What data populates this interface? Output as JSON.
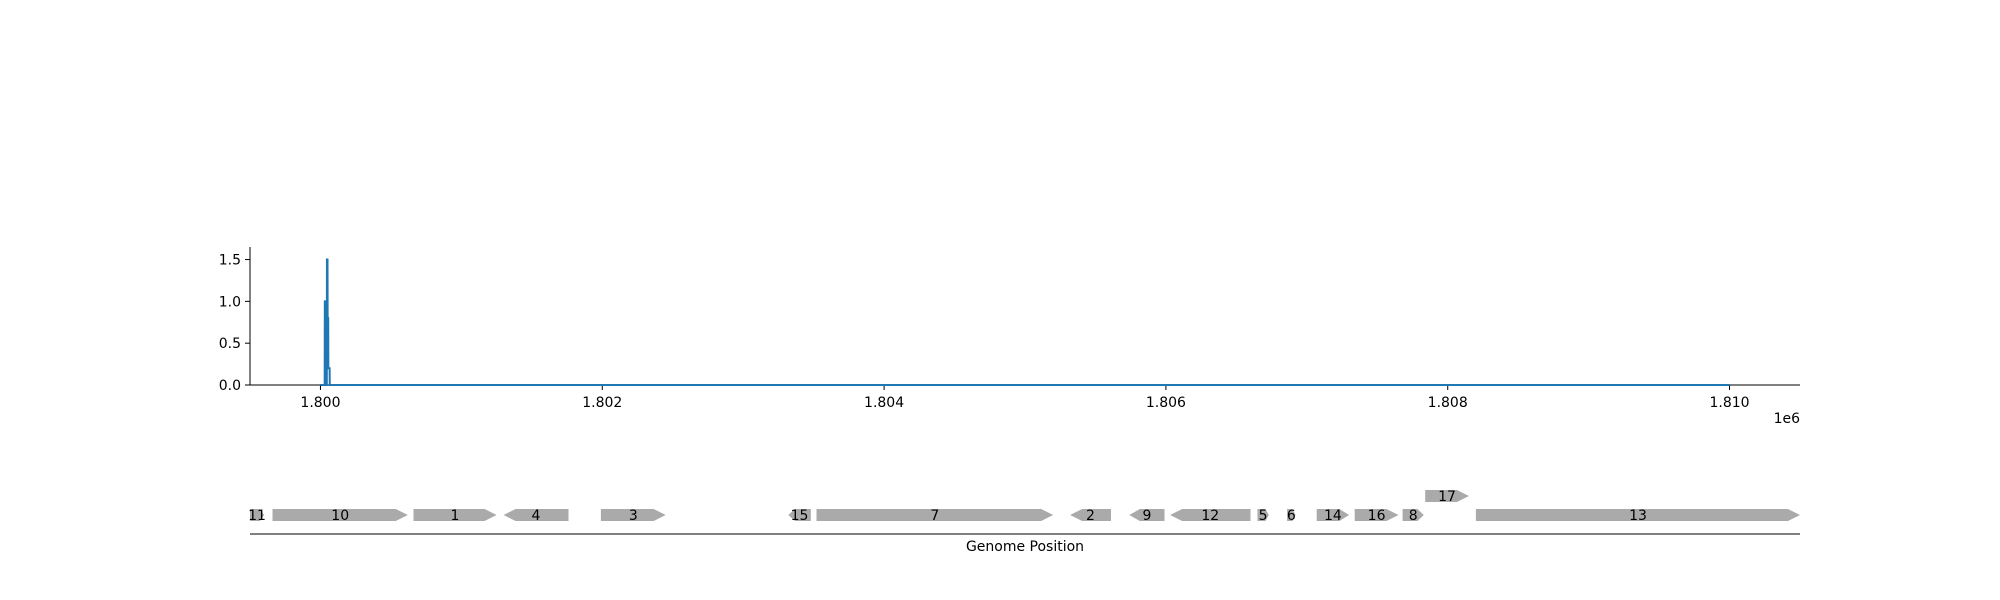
{
  "chart_data": [
    {
      "type": "line",
      "title": "",
      "xlabel": "",
      "ylabel": "",
      "xlim": [
        1799500,
        1810500
      ],
      "ylim": [
        0,
        1.65
      ],
      "x_offset_label": "1e6",
      "xticks": [
        1800000,
        1802000,
        1804000,
        1806000,
        1808000,
        1810000
      ],
      "xtick_labels": [
        "1.800",
        "1.802",
        "1.804",
        "1.806",
        "1.808",
        "1.810"
      ],
      "yticks": [
        0.0,
        0.5,
        1.0,
        1.5
      ],
      "ytick_labels": [
        "0.0",
        "0.5",
        "1.0",
        "1.5"
      ],
      "grid": false,
      "line_color": "#1f77b4",
      "series": [
        {
          "x": [
            1800000,
            1800020,
            1800030,
            1800031,
            1800035,
            1800036,
            1800045,
            1800046,
            1800050,
            1800051,
            1800055,
            1800056,
            1800065,
            1800066,
            1800075,
            1810000
          ],
          "y": [
            0,
            0,
            0,
            1.0,
            1.0,
            0,
            0,
            1.5,
            1.5,
            0.8,
            0.8,
            0.2,
            0.2,
            0,
            0,
            0
          ]
        }
      ]
    },
    {
      "type": "gene_track",
      "xlabel": "Genome Position",
      "xlim": [
        1799500,
        1810500
      ],
      "gene_color": "#aaaaaa",
      "genes": [
        {
          "label": "11",
          "start": 1799500,
          "end": 1799600,
          "strand": "+",
          "row": 0
        },
        {
          "label": "10",
          "start": 1799660,
          "end": 1800620,
          "strand": "+",
          "row": 0
        },
        {
          "label": "1",
          "start": 1800660,
          "end": 1801250,
          "strand": "+",
          "row": 0
        },
        {
          "label": "4",
          "start": 1801300,
          "end": 1801760,
          "strand": "-",
          "row": 0
        },
        {
          "label": "3",
          "start": 1801990,
          "end": 1802450,
          "strand": "+",
          "row": 0
        },
        {
          "label": "15",
          "start": 1803320,
          "end": 1803480,
          "strand": "-",
          "row": 0
        },
        {
          "label": "7",
          "start": 1803520,
          "end": 1805200,
          "strand": "+",
          "row": 0
        },
        {
          "label": "2",
          "start": 1805320,
          "end": 1805610,
          "strand": "-",
          "row": 0
        },
        {
          "label": "9",
          "start": 1805740,
          "end": 1805990,
          "strand": "-",
          "row": 0
        },
        {
          "label": "12",
          "start": 1806030,
          "end": 1806600,
          "strand": "-",
          "row": 0
        },
        {
          "label": "5",
          "start": 1806650,
          "end": 1806730,
          "strand": "+",
          "row": 0
        },
        {
          "label": "6",
          "start": 1806860,
          "end": 1806920,
          "strand": "+",
          "row": 0
        },
        {
          "label": "14",
          "start": 1807070,
          "end": 1807300,
          "strand": "+",
          "row": 0
        },
        {
          "label": "16",
          "start": 1807340,
          "end": 1807650,
          "strand": "+",
          "row": 0
        },
        {
          "label": "8",
          "start": 1807680,
          "end": 1807830,
          "strand": "+",
          "row": 0
        },
        {
          "label": "17",
          "start": 1807840,
          "end": 1808150,
          "strand": "+",
          "row": 1
        },
        {
          "label": "13",
          "start": 1808200,
          "end": 1810500,
          "strand": "+",
          "row": 0
        }
      ]
    }
  ]
}
